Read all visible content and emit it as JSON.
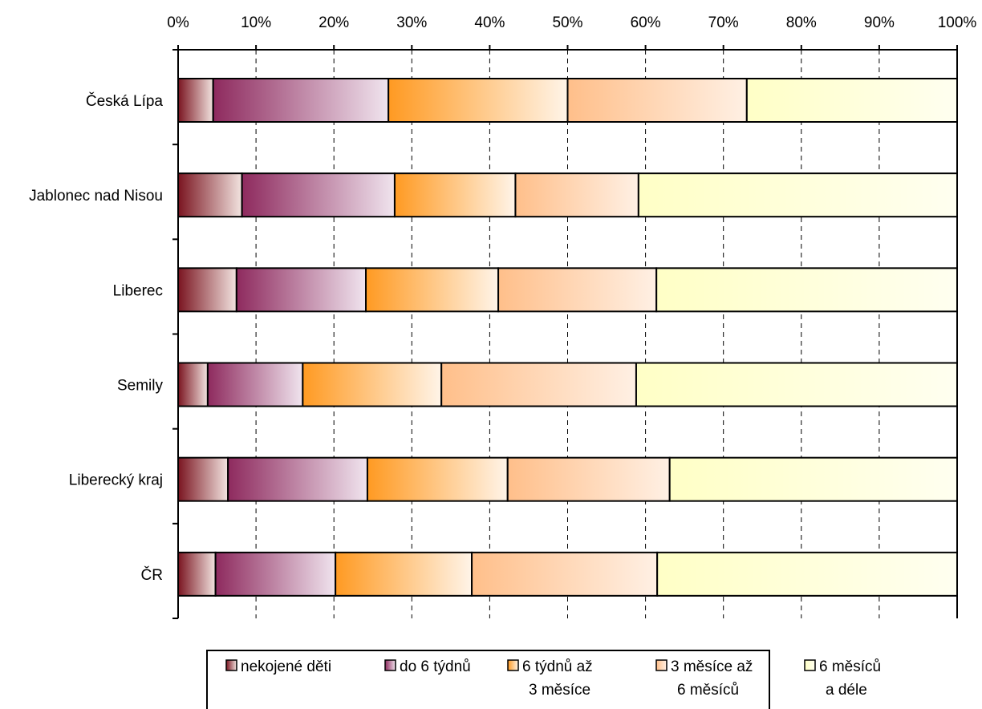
{
  "chart_data": {
    "type": "bar",
    "orientation": "horizontal",
    "stacked": "percent",
    "xlim": [
      0,
      100
    ],
    "x_ticks": [
      "0%",
      "10%",
      "20%",
      "30%",
      "40%",
      "50%",
      "60%",
      "70%",
      "80%",
      "90%",
      "100%"
    ],
    "x_axis_position": "top",
    "grid": "vertical dashed",
    "categories": [
      "Česká Lípa",
      "Jablonec nad Nisou",
      "Liberec",
      "Semily",
      "Liberecký kraj",
      "ČR"
    ],
    "series": [
      {
        "name": "nekojené děti",
        "values": [
          4.5,
          8.2,
          7.5,
          3.8,
          6.4,
          4.8
        ],
        "colors": [
          "#7a1420",
          "#f2e4e0"
        ]
      },
      {
        "name": "do 6 týdnů",
        "values": [
          22.5,
          19.6,
          16.6,
          12.2,
          17.9,
          15.4
        ],
        "colors": [
          "#8e2a5e",
          "#f0e4ee"
        ]
      },
      {
        "name": "6 týdnů až 3 měsíce",
        "values": [
          23.0,
          15.5,
          17.0,
          17.8,
          18.0,
          17.5
        ],
        "colors": [
          "#ff9a22",
          "#fff4e8"
        ]
      },
      {
        "name": "3 měsíce až 6 měsíců",
        "values": [
          23.0,
          15.8,
          20.3,
          25.0,
          20.8,
          23.8
        ],
        "colors": [
          "#ffbf8a",
          "#fff0e4"
        ]
      },
      {
        "name": "6 měsíců a déle",
        "values": [
          27.0,
          40.9,
          38.6,
          41.2,
          36.9,
          38.5
        ],
        "colors": [
          "#ffffc6",
          "#fffff0"
        ]
      }
    ],
    "legend": {
      "placement": "bottom",
      "entries": [
        [
          "nekojené děti"
        ],
        [
          "do 6 týdnů"
        ],
        [
          "6 týdnů až",
          "3 měsíce"
        ],
        [
          "3 měsíce až",
          "6 měsíců"
        ],
        [
          "6 měsíců",
          "a déle"
        ]
      ]
    }
  }
}
